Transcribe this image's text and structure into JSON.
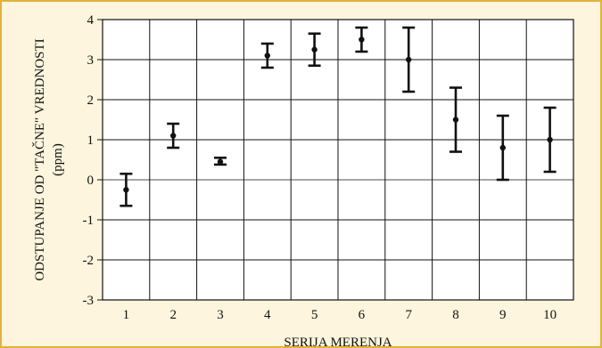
{
  "chart_data": {
    "type": "errorbar",
    "xlabel": "SERIJA MERENJA",
    "ylabel": "ODSTUPANJE OD \"TAČNE\" VREDNOSTI",
    "ylabel_unit": "(ppm)",
    "ylim": [
      -3,
      4
    ],
    "y_ticks": [
      -3,
      -2,
      -1,
      0,
      1,
      2,
      3,
      4
    ],
    "categories": [
      "1",
      "2",
      "3",
      "4",
      "5",
      "6",
      "7",
      "8",
      "9",
      "10"
    ],
    "values": [
      -0.25,
      1.1,
      0.45,
      3.1,
      3.25,
      3.5,
      3.0,
      1.5,
      0.8,
      1.0
    ],
    "err_low": [
      -0.65,
      0.8,
      0.38,
      2.8,
      2.85,
      3.2,
      2.2,
      0.7,
      0.0,
      0.2
    ],
    "err_high": [
      0.15,
      1.4,
      0.55,
      3.4,
      3.65,
      3.8,
      3.8,
      2.3,
      1.6,
      1.8
    ],
    "grid": true,
    "colors": {
      "background": "#fdf5dd",
      "plot": "#ffffff",
      "border": "#e3b23c",
      "ink": "#111111"
    }
  }
}
